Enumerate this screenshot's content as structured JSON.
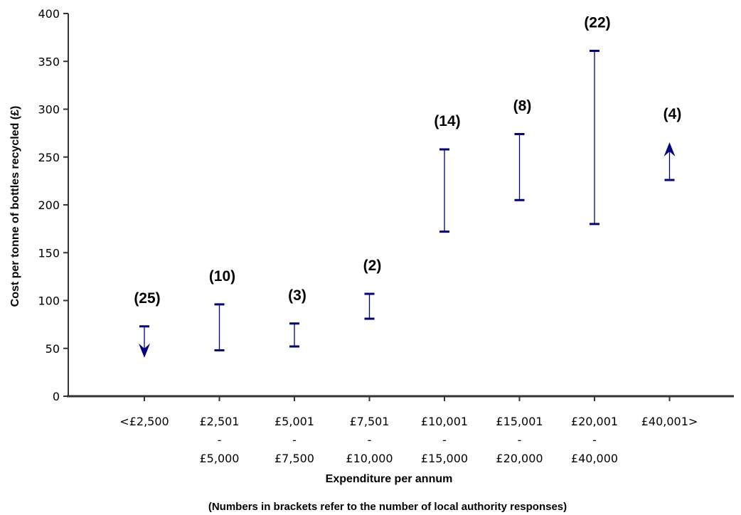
{
  "chart_data": {
    "type": "range",
    "xlabel": "Expenditure per annum",
    "ylabel": "Cost per tonne of bottles recycled (£)",
    "note": "(Numbers in brackets refer to the number of local authority responses)",
    "ylim": [
      0,
      400
    ],
    "yticks": [
      0,
      50,
      100,
      150,
      200,
      250,
      300,
      350,
      400
    ],
    "grid": false,
    "series": [
      {
        "values": [
          {
            "category_lines": [
              "<£2,500"
            ],
            "low": null,
            "high": 73,
            "direction": "down",
            "count_label": "(25)"
          },
          {
            "category_lines": [
              "£2,501",
              "-",
              "£5,000"
            ],
            "low": 48,
            "high": 96,
            "count_label": "(10)"
          },
          {
            "category_lines": [
              "£5,001",
              "-",
              "£7,500"
            ],
            "low": 52,
            "high": 76,
            "count_label": "(3)"
          },
          {
            "category_lines": [
              "£7,501",
              "-",
              "£10,000"
            ],
            "low": 81,
            "high": 107,
            "count_label": "(2)"
          },
          {
            "category_lines": [
              "£10,001",
              "-",
              "£15,000"
            ],
            "low": 172,
            "high": 258,
            "count_label": "(14)"
          },
          {
            "category_lines": [
              "£15,001",
              "-",
              "£20,000"
            ],
            "low": 205,
            "high": 274,
            "count_label": "(8)"
          },
          {
            "category_lines": [
              "£20,001",
              "-",
              "£40,000"
            ],
            "low": 180,
            "high": 361,
            "count_label": "(22)"
          },
          {
            "category_lines": [
              "£40,001>"
            ],
            "low": 226,
            "high": null,
            "direction": "up",
            "count_label": "(4)"
          }
        ]
      }
    ],
    "colors": {
      "range": "#000080",
      "axis": "#333333"
    }
  }
}
